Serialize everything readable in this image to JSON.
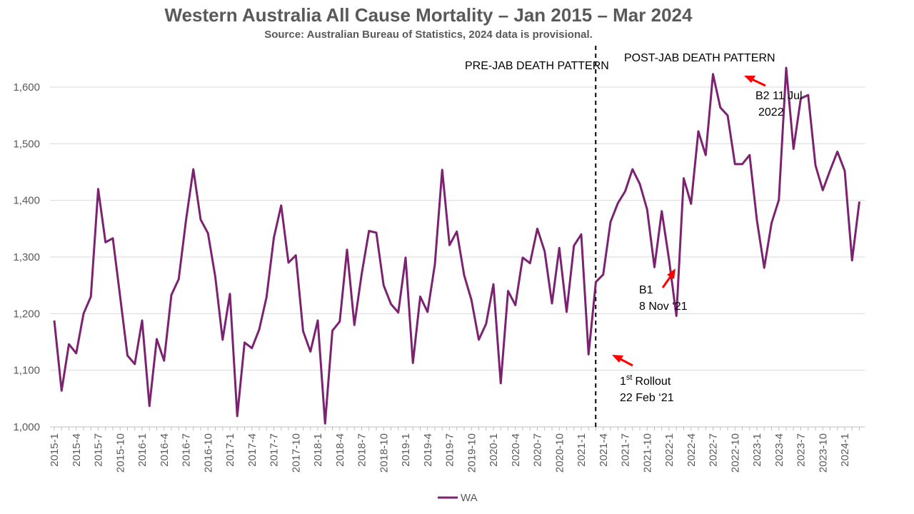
{
  "chart_data": {
    "type": "line",
    "title": "Western Australia All Cause Mortality – Jan 2015 – Mar 2024",
    "subtitle": "Source: Australian Bureau of Statistics, 2024 data is provisional.",
    "xlabel": "",
    "ylabel": "",
    "ylim": [
      1000,
      1650
    ],
    "yticks": [
      1000,
      1100,
      1200,
      1300,
      1400,
      1500,
      1600
    ],
    "ytick_labels": [
      "1,000",
      "1,100",
      "1,200",
      "1,300",
      "1,400",
      "1,500",
      "1,600"
    ],
    "grid": true,
    "legend": "bottom",
    "x": [
      "2015-1",
      "2015-2",
      "2015-3",
      "2015-4",
      "2015-5",
      "2015-6",
      "2015-7",
      "2015-8",
      "2015-9",
      "2015-10",
      "2015-11",
      "2015-12",
      "2016-1",
      "2016-2",
      "2016-3",
      "2016-4",
      "2016-5",
      "2016-6",
      "2016-7",
      "2016-8",
      "2016-9",
      "2016-10",
      "2016-11",
      "2016-12",
      "2017-1",
      "2017-2",
      "2017-3",
      "2017-4",
      "2017-5",
      "2017-6",
      "2017-7",
      "2017-8",
      "2017-9",
      "2017-10",
      "2017-11",
      "2017-12",
      "2018-1",
      "2018-2",
      "2018-3",
      "2018-4",
      "2018-5",
      "2018-6",
      "2018-7",
      "2018-8",
      "2018-9",
      "2018-10",
      "2018-11",
      "2018-12",
      "2019-1",
      "2019-2",
      "2019-3",
      "2019-4",
      "2019-5",
      "2019-6",
      "2019-7",
      "2019-8",
      "2019-9",
      "2019-10",
      "2019-11",
      "2019-12",
      "2020-1",
      "2020-2",
      "2020-3",
      "2020-4",
      "2020-5",
      "2020-6",
      "2020-7",
      "2020-8",
      "2020-9",
      "2020-10",
      "2020-11",
      "2020-12",
      "2021-1",
      "2021-2",
      "2021-3",
      "2021-4",
      "2021-5",
      "2021-6",
      "2021-7",
      "2021-8",
      "2021-9",
      "2021-10",
      "2021-11",
      "2021-12",
      "2022-1",
      "2022-2",
      "2022-3",
      "2022-4",
      "2022-5",
      "2022-6",
      "2022-7",
      "2022-8",
      "2022-9",
      "2022-10",
      "2022-11",
      "2022-12",
      "2023-1",
      "2023-2",
      "2023-3",
      "2023-4",
      "2023-5",
      "2023-6",
      "2023-7",
      "2023-8",
      "2023-9",
      "2023-10",
      "2023-11",
      "2023-12",
      "2024-1",
      "2024-2",
      "2024-3"
    ],
    "x_tick_labels": [
      "2015-1",
      "2015-4",
      "2015-7",
      "2015-10",
      "2016-1",
      "2016-4",
      "2016-7",
      "2016-10",
      "2017-1",
      "2017-4",
      "2017-7",
      "2017-10",
      "2018-1",
      "2018-4",
      "2018-7",
      "2018-10",
      "2019-1",
      "2019-4",
      "2019-7",
      "2019-10",
      "2020-1",
      "2020-4",
      "2020-7",
      "2020-10",
      "2021-1",
      "2021-4",
      "2021-7",
      "2021-10",
      "2022-1",
      "2022-4",
      "2022-7",
      "2022-10",
      "2023-1",
      "2023-4",
      "2023-7",
      "2023-10",
      "2024-1"
    ],
    "series": [
      {
        "name": "WA",
        "color": "#7b2270",
        "values": [
          1188,
          1064,
          1146,
          1130,
          1200,
          1230,
          1420,
          1326,
          1333,
          1230,
          1126,
          1111,
          1188,
          1037,
          1155,
          1117,
          1233,
          1261,
          1365,
          1455,
          1366,
          1342,
          1265,
          1154,
          1235,
          1019,
          1149,
          1139,
          1172,
          1229,
          1334,
          1391,
          1290,
          1303,
          1169,
          1133,
          1188,
          1006,
          1170,
          1186,
          1313,
          1180,
          1270,
          1346,
          1343,
          1250,
          1217,
          1202,
          1299,
          1113,
          1230,
          1203,
          1287,
          1454,
          1321,
          1345,
          1268,
          1224,
          1154,
          1182,
          1252,
          1077,
          1240,
          1215,
          1299,
          1289,
          1350,
          1310,
          1218,
          1316,
          1203,
          1320,
          1340,
          1128,
          1256,
          1269,
          1362,
          1395,
          1416,
          1455,
          1429,
          1384,
          1282,
          1381,
          1295,
          1196,
          1439,
          1394,
          1522,
          1480,
          1623,
          1564,
          1550,
          1464,
          1464,
          1480,
          1365,
          1281,
          1360,
          1401,
          1634,
          1491,
          1580,
          1586,
          1462,
          1418,
          1453,
          1486,
          1452,
          1294,
          1398
        ]
      }
    ],
    "annotations": {
      "pre_jab": "PRE-JAB DEATH PATTERN",
      "post_jab": "POST-JAB DEATH PATTERN",
      "rollout_line1": "Rollout",
      "rollout_sup_prefix": "1",
      "rollout_sup": "st",
      "rollout_line2": "22 Feb ‘21",
      "b1_line1": "B1",
      "b1_line2": "8 Nov ‘21",
      "b2_line1": "B2  11 Jul",
      "b2_line2": "2022"
    },
    "divider_at": "2021-2",
    "arrow_color": "#ff0000"
  }
}
